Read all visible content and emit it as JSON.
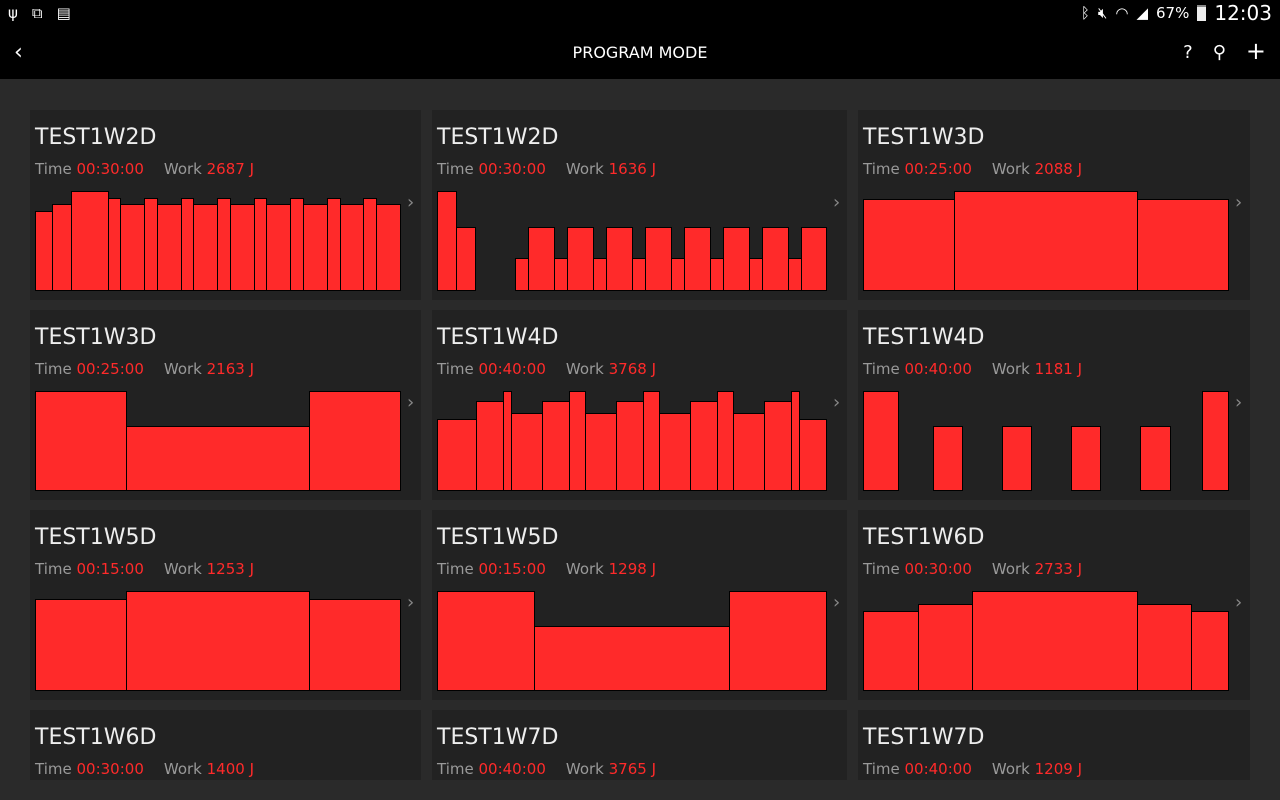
{
  "status_bar": {
    "left_icons": [
      "usb-icon",
      "screen-cast-icon",
      "sim-card-icon"
    ],
    "right_icons": [
      "bluetooth-icon",
      "mute-icon",
      "wifi-icon",
      "signal-icon"
    ],
    "battery": "67%",
    "time": "12:03"
  },
  "app_bar": {
    "title": "PROGRAM MODE",
    "back_icon": "chevron-left-icon",
    "actions": [
      {
        "icon": "help-icon",
        "glyph": "?"
      },
      {
        "icon": "search-icon",
        "glyph": "⚲"
      },
      {
        "icon": "add-icon",
        "glyph": "+"
      }
    ]
  },
  "labels": {
    "time": "Time",
    "work": "Work"
  },
  "colors": {
    "accent": "#ff2a2a",
    "card": "#222222",
    "background": "#2a2a2a"
  },
  "programs": [
    {
      "name": "TEST1W2D",
      "time": "00:30:00",
      "work": "2687 J",
      "segments": [
        [
          17,
          80
        ],
        [
          19,
          87
        ],
        [
          37,
          100
        ],
        [
          12,
          93
        ],
        [
          24,
          87
        ],
        [
          13,
          93
        ],
        [
          24,
          87
        ],
        [
          12,
          93
        ],
        [
          24,
          87
        ],
        [
          13,
          93
        ],
        [
          24,
          87
        ],
        [
          12,
          93
        ],
        [
          24,
          87
        ],
        [
          13,
          93
        ],
        [
          24,
          87
        ],
        [
          13,
          93
        ],
        [
          23,
          87
        ],
        [
          13,
          93
        ],
        [
          24,
          87
        ]
      ]
    },
    {
      "name": "TEST1W2D",
      "time": "00:30:00",
      "work": "1636 J",
      "segments": [
        [
          19,
          100
        ],
        [
          19,
          64
        ],
        [
          40,
          0
        ],
        [
          13,
          33
        ],
        [
          26,
          64
        ],
        [
          13,
          33
        ],
        [
          26,
          64
        ],
        [
          13,
          33
        ],
        [
          26,
          64
        ],
        [
          13,
          33
        ],
        [
          26,
          64
        ],
        [
          13,
          33
        ],
        [
          26,
          64
        ],
        [
          13,
          33
        ],
        [
          26,
          64
        ],
        [
          13,
          33
        ],
        [
          26,
          64
        ],
        [
          13,
          33
        ],
        [
          25,
          64
        ]
      ]
    },
    {
      "name": "TEST1W3D",
      "time": "00:25:00",
      "work": "2088 J",
      "segments": [
        [
          91,
          92
        ],
        [
          183,
          100
        ],
        [
          91,
          92
        ]
      ]
    },
    {
      "name": "TEST1W3D",
      "time": "00:25:00",
      "work": "2163 J",
      "segments": [
        [
          91,
          100
        ],
        [
          183,
          65
        ],
        [
          91,
          100
        ]
      ]
    },
    {
      "name": "TEST1W4D",
      "time": "00:40:00",
      "work": "3768 J",
      "segments": [
        [
          39,
          72
        ],
        [
          27,
          90
        ],
        [
          8,
          100
        ],
        [
          31,
          78
        ],
        [
          27,
          90
        ],
        [
          16,
          100
        ],
        [
          31,
          78
        ],
        [
          27,
          90
        ],
        [
          16,
          100
        ],
        [
          31,
          78
        ],
        [
          27,
          90
        ],
        [
          16,
          100
        ],
        [
          31,
          78
        ],
        [
          27,
          90
        ],
        [
          8,
          100
        ],
        [
          27,
          72
        ]
      ]
    },
    {
      "name": "TEST1W4D",
      "time": "00:40:00",
      "work": "1181 J",
      "segments": [
        [
          35,
          100
        ],
        [
          35,
          0
        ],
        [
          29,
          65
        ],
        [
          40,
          0
        ],
        [
          29,
          65
        ],
        [
          40,
          0
        ],
        [
          29,
          65
        ],
        [
          40,
          0
        ],
        [
          30,
          65
        ],
        [
          32,
          0
        ],
        [
          26,
          100
        ]
      ]
    },
    {
      "name": "TEST1W5D",
      "time": "00:15:00",
      "work": "1253 J",
      "segments": [
        [
          91,
          92
        ],
        [
          183,
          100
        ],
        [
          91,
          92
        ]
      ]
    },
    {
      "name": "TEST1W5D",
      "time": "00:15:00",
      "work": "1298 J",
      "segments": [
        [
          97,
          100
        ],
        [
          195,
          65
        ],
        [
          97,
          100
        ]
      ]
    },
    {
      "name": "TEST1W6D",
      "time": "00:30:00",
      "work": "2733 J",
      "segments": [
        [
          55,
          80
        ],
        [
          54,
          87
        ],
        [
          165,
          100
        ],
        [
          54,
          87
        ],
        [
          37,
          80
        ]
      ]
    },
    {
      "name": "TEST1W6D",
      "time": "00:30:00",
      "work": "1400 J",
      "segments": []
    },
    {
      "name": "TEST1W7D",
      "time": "00:40:00",
      "work": "3765 J",
      "segments": []
    },
    {
      "name": "TEST1W7D",
      "time": "00:40:00",
      "work": "1209 J",
      "segments": []
    }
  ]
}
